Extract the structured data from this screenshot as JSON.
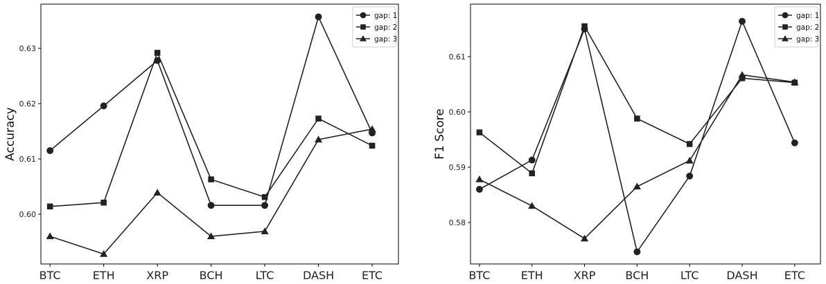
{
  "chart_data": [
    {
      "type": "line",
      "title": "",
      "xlabel": "",
      "ylabel": "Accuracy",
      "categories": [
        "BTC",
        "ETH",
        "XRP",
        "BCH",
        "LTC",
        "DASH",
        "ETC"
      ],
      "ylim": [
        0.591,
        0.638
      ],
      "yticks": [
        "0.60",
        "0.61",
        "0.62",
        "0.63"
      ],
      "legend_position": "top-right",
      "series": [
        {
          "name": "gap: 1",
          "marker": "circle",
          "values": [
            0.6115,
            0.6196,
            0.6278,
            0.6016,
            0.6016,
            0.6357,
            0.6147
          ]
        },
        {
          "name": "gap: 2",
          "marker": "square",
          "values": [
            0.6014,
            0.6021,
            0.6292,
            0.6063,
            0.6031,
            0.6173,
            0.6124
          ]
        },
        {
          "name": "gap: 3",
          "marker": "triangle",
          "values": [
            0.596,
            0.5928,
            0.6039,
            0.596,
            0.5969,
            0.6135,
            0.6154
          ]
        }
      ]
    },
    {
      "type": "line",
      "title": "",
      "xlabel": "",
      "ylabel": "F1 Score",
      "categories": [
        "BTC",
        "ETH",
        "XRP",
        "BCH",
        "LTC",
        "DASH",
        "ETC"
      ],
      "ylim": [
        0.5725,
        0.6195
      ],
      "yticks": [
        "0.58",
        "0.59",
        "0.60",
        "0.61"
      ],
      "legend_position": "top-right",
      "series": [
        {
          "name": "gap: 1",
          "marker": "circle",
          "values": [
            0.586,
            0.5913,
            0.615,
            0.5747,
            0.5884,
            0.6164,
            0.5944
          ]
        },
        {
          "name": "gap: 2",
          "marker": "square",
          "values": [
            0.5963,
            0.5889,
            0.6155,
            0.5988,
            0.5942,
            0.6061,
            0.6053
          ]
        },
        {
          "name": "gap: 3",
          "marker": "triangle",
          "values": [
            0.5878,
            0.583,
            0.5771,
            0.5865,
            0.5912,
            0.6067,
            0.6054
          ]
        }
      ]
    }
  ],
  "style": {
    "line_color": "#222222",
    "axis_color": "#000000",
    "background": "#ffffff"
  }
}
